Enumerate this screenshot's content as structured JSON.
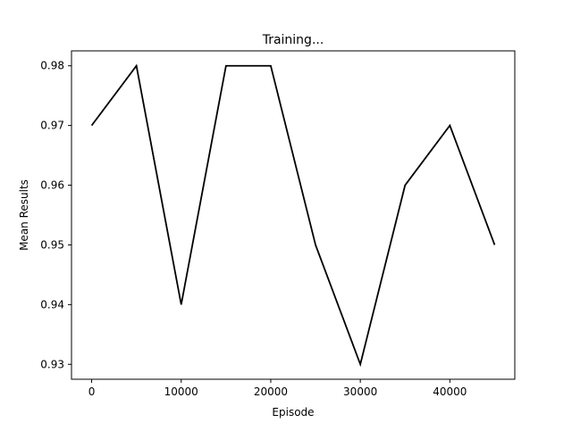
{
  "chart_data": {
    "type": "line",
    "title": "Training...",
    "xlabel": "Episode",
    "ylabel": "Mean Results",
    "x": [
      0,
      5000,
      10000,
      15000,
      20000,
      25000,
      30000,
      35000,
      40000,
      45000
    ],
    "series": [
      {
        "values": [
          0.97,
          0.98,
          0.94,
          0.98,
          0.98,
          0.95,
          0.93,
          0.96,
          0.97,
          0.95
        ],
        "color": "#000000"
      }
    ],
    "xlim": [
      -2250,
      47250
    ],
    "ylim": [
      0.9275,
      0.9825
    ],
    "xticks": [
      0,
      10000,
      20000,
      30000,
      40000
    ],
    "xtick_labels": [
      "0",
      "10000",
      "20000",
      "30000",
      "40000"
    ],
    "yticks": [
      0.93,
      0.94,
      0.95,
      0.96,
      0.97,
      0.98
    ],
    "ytick_labels": [
      "0.93",
      "0.94",
      "0.95",
      "0.96",
      "0.97",
      "0.98"
    ],
    "grid": false,
    "legend": "none"
  }
}
